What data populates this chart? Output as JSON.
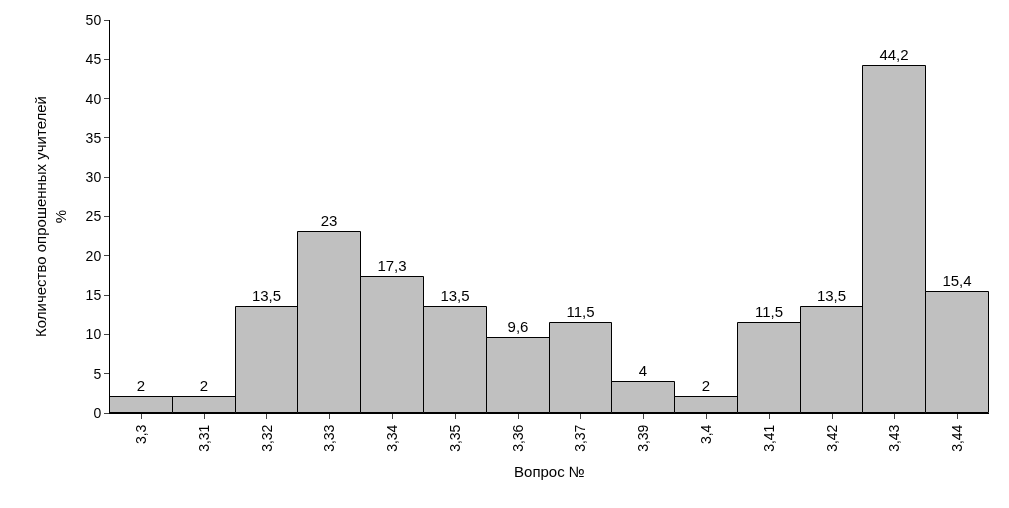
{
  "chart_data": {
    "type": "bar",
    "xlabel": "Вопрос №",
    "ylabel": "Количество опрошенных учителей\n%",
    "categories": [
      "3,3",
      "3,31",
      "3,32",
      "3,33",
      "3,34",
      "3,35",
      "3,36",
      "3,37",
      "3,39",
      "3,4",
      "3,41",
      "3,42",
      "3,43",
      "3,44"
    ],
    "values": [
      2,
      2,
      13.5,
      23,
      17.3,
      13.5,
      9.6,
      11.5,
      4,
      2,
      11.5,
      13.5,
      44.2,
      15.4
    ],
    "value_labels": [
      "2",
      "2",
      "13,5",
      "23",
      "17,3",
      "13,5",
      "9,6",
      "11,5",
      "4",
      "2",
      "11,5",
      "13,5",
      "44,2",
      "15,4"
    ],
    "color": "#c0c0c0",
    "ylim": [
      0,
      50
    ],
    "yticks": [
      0,
      5,
      10,
      15,
      20,
      25,
      30,
      35,
      40,
      45,
      50
    ],
    "grid": false,
    "legend": false
  }
}
